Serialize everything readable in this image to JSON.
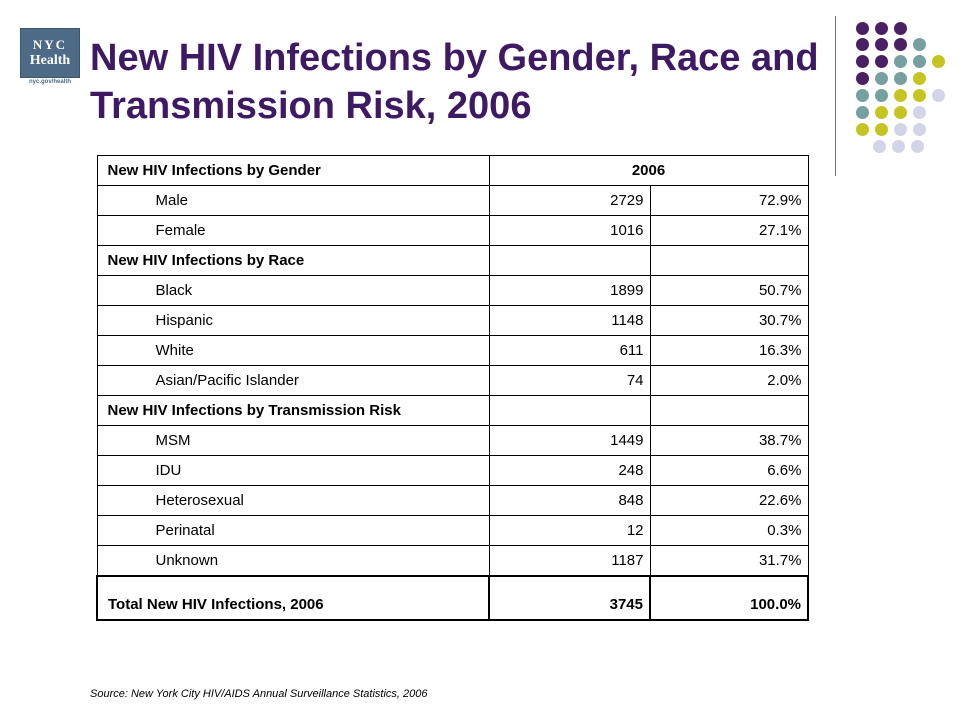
{
  "logo": {
    "line1": "NYC",
    "line2": "Health",
    "url": "nyc.gov/health"
  },
  "title": "New HIV Infections by Gender, Race and Transmission Risk, 2006",
  "colors": {
    "title": "#3d1a63",
    "dot_purple": "#4a2065",
    "dot_teal": "#76a0a0",
    "dot_olive": "#c6c423",
    "dot_lavender": "#d4d4e8"
  },
  "table": {
    "header": {
      "label": "New HIV Infections by Gender",
      "year": "2006"
    },
    "rows": [
      {
        "label": "Male",
        "count": "2729",
        "pct": "72.9%"
      },
      {
        "label": "Female",
        "count": "1016",
        "pct": "27.1%"
      },
      {
        "label": "New HIV Infections by Race",
        "count": "",
        "pct": ""
      },
      {
        "label": "Black",
        "count": "1899",
        "pct": "50.7%"
      },
      {
        "label": "Hispanic",
        "count": "1148",
        "pct": "30.7%"
      },
      {
        "label": "White",
        "count": "611",
        "pct": "16.3%"
      },
      {
        "label": "Asian/Pacific Islander",
        "count": "74",
        "pct": "2.0%"
      },
      {
        "label": "New HIV Infections by Transmission Risk",
        "count": "",
        "pct": ""
      },
      {
        "label": "MSM",
        "count": "1449",
        "pct": "38.7%"
      },
      {
        "label": "IDU",
        "count": "248",
        "pct": "6.6%"
      },
      {
        "label": "Heterosexual",
        "count": "848",
        "pct": "22.6%"
      },
      {
        "label": "Perinatal",
        "count": "12",
        "pct": "0.3%"
      },
      {
        "label": "Unknown",
        "count": "1187",
        "pct": "31.7%"
      }
    ],
    "total": {
      "label": "Total New HIV Infections, 2006",
      "count": "3745",
      "pct": "100.0%"
    }
  },
  "source": "Source: New York City HIV/AIDS Annual Surveillance Statistics, 2006"
}
